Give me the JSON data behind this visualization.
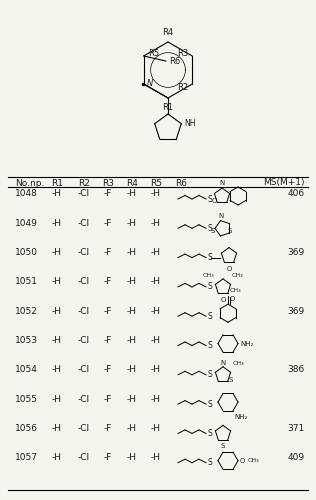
{
  "background_color": "#f5f5f0",
  "text_color": "#1a1a1a",
  "line_color": "#333333",
  "header_cols": [
    "No.np.",
    "R1",
    "R2",
    "R3",
    "R4",
    "R5",
    "R6",
    "MS(M+1)"
  ],
  "rows": [
    {
      "no": "1048",
      "r1": "-H",
      "r2": "-Cl",
      "r3": "-F",
      "r4": "-H",
      "r5": "-H",
      "r6_img": "benzoxazole_butyl",
      "ms": "406"
    },
    {
      "no": "1049",
      "r1": "-H",
      "r2": "-Cl",
      "r3": "-F",
      "r4": "-H",
      "r5": "-H",
      "r6_img": "thiadiazole_butyl",
      "ms": ""
    },
    {
      "no": "1050",
      "r1": "-H",
      "r2": "-Cl",
      "r3": "-F",
      "r4": "-H",
      "r5": "-H",
      "r6_img": "furan_butyl",
      "ms": "369"
    },
    {
      "no": "1051",
      "r1": "-H",
      "r2": "-Cl",
      "r3": "-F",
      "r4": "-H",
      "r5": "-H",
      "r6_img": "dimethylfuran_butyl",
      "ms": ""
    },
    {
      "no": "1052",
      "r1": "-H",
      "r2": "-Cl",
      "r3": "-F",
      "r4": "-H",
      "r5": "-H",
      "r6_img": "acetyl_butyl",
      "ms": "369"
    },
    {
      "no": "1053",
      "r1": "-H",
      "r2": "-Cl",
      "r3": "-F",
      "r4": "-H",
      "r5": "-H",
      "r6_img": "aminophenyl_butyl",
      "ms": ""
    },
    {
      "no": "1054",
      "r1": "-H",
      "r2": "-Cl",
      "r3": "-F",
      "r4": "-H",
      "r5": "-H",
      "r6_img": "methylthiadiazole_butyl",
      "ms": "386"
    },
    {
      "no": "1055",
      "r1": "-H",
      "r2": "-Cl",
      "r3": "-F",
      "r4": "-H",
      "r5": "-H",
      "r6_img": "aminophenyl2_butyl",
      "ms": ""
    },
    {
      "no": "1056",
      "r1": "-H",
      "r2": "-Cl",
      "r3": "-F",
      "r4": "-H",
      "r5": "-H",
      "r6_img": "thiophene_butyl",
      "ms": "371"
    },
    {
      "no": "1057",
      "r1": "-H",
      "r2": "-Cl",
      "r3": "-F",
      "r4": "-H",
      "r5": "-H",
      "r6_img": "methoxyphenyl_butyl",
      "ms": "409"
    }
  ],
  "col_x_frac": {
    "no": 0.055,
    "r1": 0.185,
    "r2": 0.255,
    "r3": 0.325,
    "r4": 0.39,
    "r5": 0.455,
    "ms": 0.975
  },
  "font_size": 6.5,
  "header_font_size": 6.5
}
